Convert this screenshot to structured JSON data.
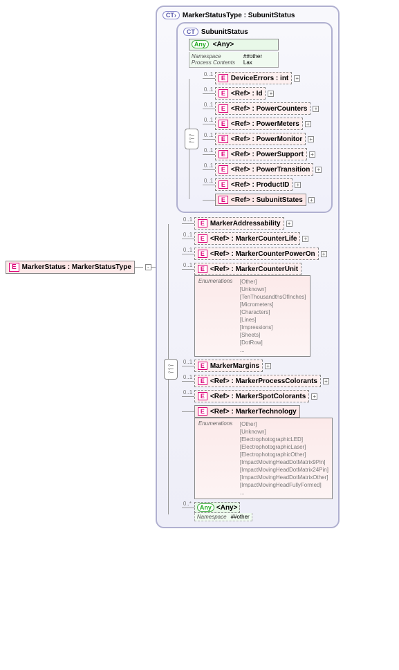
{
  "root": {
    "label": "MarkerStatus : MarkerStatusType"
  },
  "outer_ct": {
    "label": "MarkerStatusType : SubunitStatus"
  },
  "inner_ct": {
    "label": "SubunitStatus"
  },
  "any_block": {
    "label": "<Any>",
    "namespace_lbl": "Namespace",
    "namespace_val": "##other",
    "process_lbl": "Process Contents",
    "process_val": "Lax"
  },
  "inner_items": [
    {
      "card": "0..1",
      "text": "DeviceErrors : int",
      "dashed": true,
      "expand": true
    },
    {
      "card": "0..1",
      "text": "<Ref>    : Id",
      "dashed": true,
      "expand": true
    },
    {
      "card": "0..1",
      "text": "<Ref>    : PowerCounters",
      "dashed": true,
      "expand": true
    },
    {
      "card": "0..1",
      "text": "<Ref>    : PowerMeters",
      "dashed": true,
      "expand": true
    },
    {
      "card": "0..1",
      "text": "<Ref>    : PowerMonitor",
      "dashed": true,
      "expand": true
    },
    {
      "card": "0..1",
      "text": "<Ref>    : PowerSupport",
      "dashed": true,
      "expand": true
    },
    {
      "card": "0..1",
      "text": "<Ref>    : PowerTransition",
      "dashed": true,
      "expand": true
    },
    {
      "card": "0..1",
      "text": "<Ref>    : ProductID",
      "dashed": true,
      "expand": true
    },
    {
      "card": "",
      "text": "<Ref>    : SubunitStates",
      "dashed": false,
      "expand": true
    }
  ],
  "outer_items": [
    {
      "card": "0..1",
      "text": "MarkerAddressability",
      "dashed": true,
      "expand": true
    },
    {
      "card": "0..1",
      "text": "<Ref>    : MarkerCounterLife",
      "dashed": true,
      "expand": true
    },
    {
      "card": "0..1",
      "text": "<Ref>    : MarkerCounterPowerOn",
      "dashed": true,
      "expand": true
    },
    {
      "card": "0..1",
      "text": "<Ref>    : MarkerCounterUnit",
      "dashed": true,
      "enum_label": "Enumerations",
      "enums": [
        "[Other]",
        "[Unknown]",
        "[TenThousandthsOfInches]",
        "[Micrometers]",
        "[Characters]",
        "[Lines]",
        "[Impressions]",
        "[Sheets]",
        "[DotRow]",
        "..."
      ]
    },
    {
      "card": "0..1",
      "text": "MarkerMargins",
      "dashed": true,
      "expand": true
    },
    {
      "card": "0..1",
      "text": "<Ref>    : MarkerProcessColorants",
      "dashed": true,
      "expand": true
    },
    {
      "card": "0..1",
      "text": "<Ref>    : MarkerSpotColorants",
      "dashed": true,
      "expand": true
    },
    {
      "card": "",
      "text": "<Ref>    : MarkerTechnology",
      "dashed": false,
      "enum_label": "Enumerations",
      "enums": [
        "[Other]",
        "[Unknown]",
        "[ElectrophotographicLED]",
        "[ElectrophotographicLaser]",
        "[ElectrophotographicOther]",
        "[ImpactMovingHeadDotMatrix9Pin]",
        "[ImpactMovingHeadDotMatrix24Pin]",
        "[ImpactMovingHeadDotMatrixOther]",
        "[ImpactMovingHeadFullyFormed]",
        "..."
      ]
    }
  ],
  "any_tail": {
    "card": "0..*",
    "label": "<Any>",
    "namespace_lbl": "Namespace",
    "namespace_val": "##other"
  },
  "badges": {
    "ct": "CT",
    "ct_ext": "CT›",
    "e": "E",
    "any": "Any"
  }
}
